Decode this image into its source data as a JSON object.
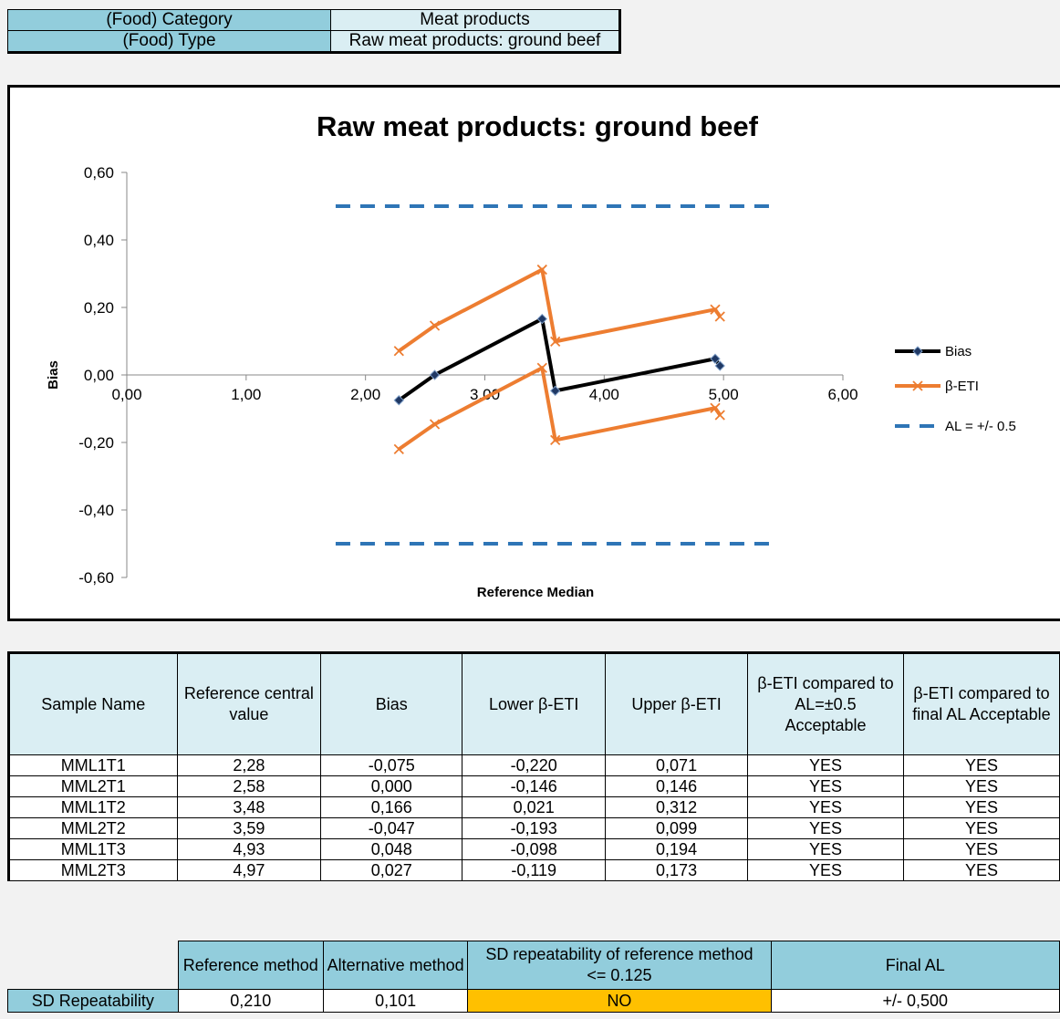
{
  "info": {
    "category_label": "(Food) Category",
    "category_value": "Meat products",
    "type_label": "(Food) Type",
    "type_value": "Raw meat products: ground beef"
  },
  "chart_data": {
    "type": "line",
    "title": "Raw meat products: ground beef",
    "xlabel": "Reference Median",
    "ylabel": "Bias",
    "xlim": [
      0,
      6
    ],
    "ylim": [
      -0.6,
      0.6
    ],
    "x_ticks": [
      "0,00",
      "1,00",
      "2,00",
      "3,00",
      "4,00",
      "5,00",
      "6,00"
    ],
    "y_ticks": [
      "0,60",
      "0,40",
      "0,20",
      "0,00",
      "-0,20",
      "-0,40",
      "-0,60"
    ],
    "legend_position": "right",
    "series": [
      {
        "name": "Bias",
        "color": "#000000",
        "marker": "diamond",
        "x": [
          2.28,
          2.58,
          3.48,
          3.59,
          4.93,
          4.97
        ],
        "y": [
          -0.075,
          0.0,
          0.166,
          -0.047,
          0.048,
          0.027
        ]
      },
      {
        "name": "β-ETI",
        "color": "#ed7d31",
        "marker": "x",
        "upper": {
          "x": [
            2.28,
            2.58,
            3.48,
            3.59,
            4.93,
            4.97
          ],
          "y": [
            0.071,
            0.146,
            0.312,
            0.099,
            0.194,
            0.173
          ]
        },
        "lower": {
          "x": [
            2.28,
            2.58,
            3.48,
            3.59,
            4.93,
            4.97
          ],
          "y": [
            -0.22,
            -0.146,
            0.021,
            -0.193,
            -0.098,
            -0.119
          ]
        }
      },
      {
        "name": "AL = +/- 0.5",
        "color": "#2e75b6",
        "dash": true,
        "upper": {
          "x": [
            1.75,
            5.4
          ],
          "y": [
            0.5,
            0.5
          ]
        },
        "lower": {
          "x": [
            1.75,
            5.4
          ],
          "y": [
            -0.5,
            -0.5
          ]
        }
      }
    ]
  },
  "results": {
    "headers": [
      "Sample Name",
      "Reference central value",
      "Bias",
      "Lower β-ETI",
      "Upper β-ETI",
      "β-ETI compared to AL=±0.5 Acceptable",
      "β-ETI compared to final AL Acceptable"
    ],
    "rows": [
      [
        "MML1T1",
        "2,28",
        "-0,075",
        "-0,220",
        "0,071",
        "YES",
        "YES"
      ],
      [
        "MML2T1",
        "2,58",
        "0,000",
        "-0,146",
        "0,146",
        "YES",
        "YES"
      ],
      [
        "MML1T2",
        "3,48",
        "0,166",
        "0,021",
        "0,312",
        "YES",
        "YES"
      ],
      [
        "MML2T2",
        "3,59",
        "-0,047",
        "-0,193",
        "0,099",
        "YES",
        "YES"
      ],
      [
        "MML1T3",
        "4,93",
        "0,048",
        "-0,098",
        "0,194",
        "YES",
        "YES"
      ],
      [
        "MML2T3",
        "4,97",
        "0,027",
        "-0,119",
        "0,173",
        "YES",
        "YES"
      ]
    ]
  },
  "repeatability": {
    "headers": [
      "Reference method",
      "Alternative method",
      "SD repeatability of reference method <= 0.125",
      "Final AL"
    ],
    "row_label": "SD Repeatability",
    "values": [
      "0,210",
      "0,101",
      "NO",
      "+/- 0,500"
    ]
  }
}
